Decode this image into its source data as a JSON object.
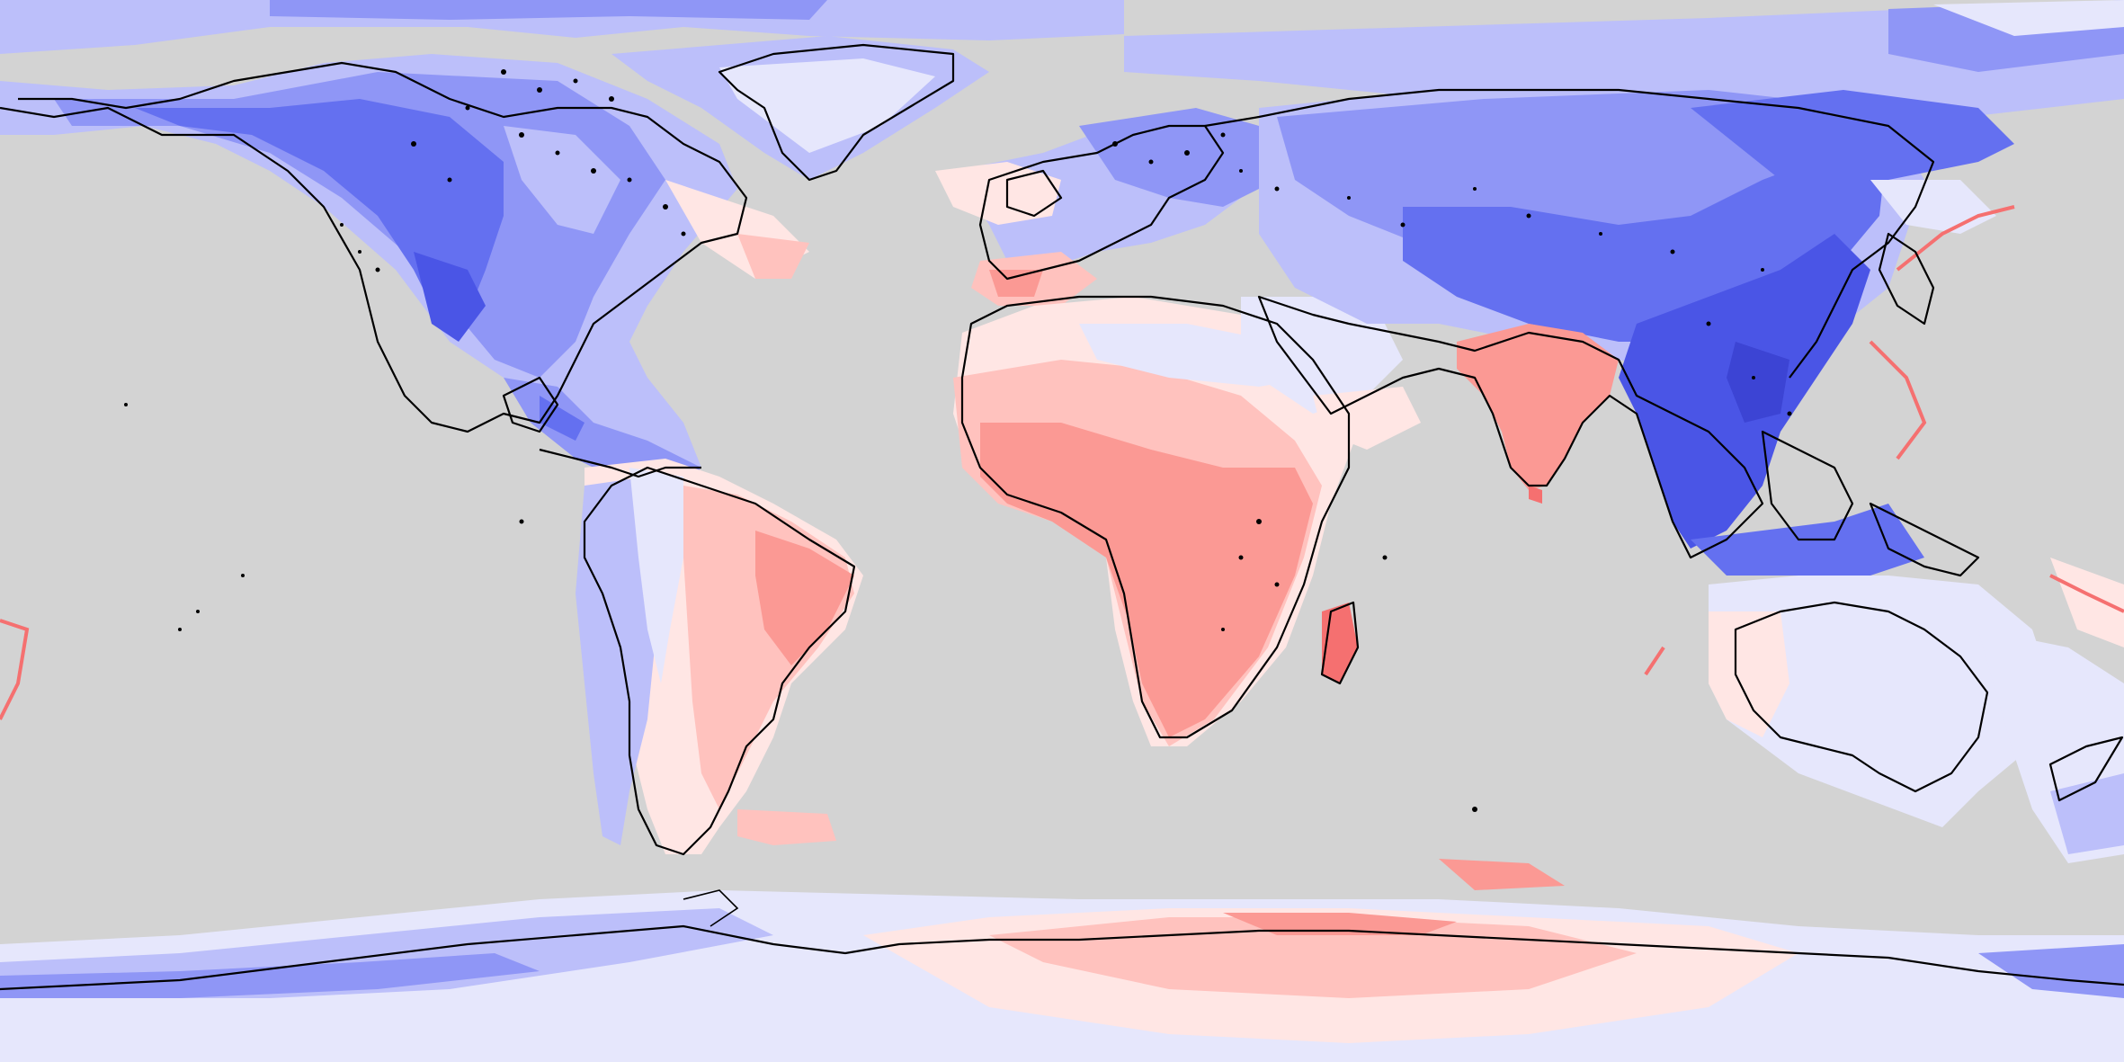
{
  "map": {
    "projection": "equirectangular",
    "ocean_color": "#d3d3d3",
    "background_fill": "#e9e9fb",
    "legend": null,
    "title": "",
    "palette": {
      "blue_5": "#4a55e6",
      "blue_4": "#6470f0",
      "blue_3": "#8f96f6",
      "blue_2": "#bcbffa",
      "blue_1": "#e6e7fc",
      "red_1": "#ffe6e4",
      "red_2": "#ffc2be",
      "red_3": "#fb9994",
      "red_4": "#f57070",
      "coastline": "#000000"
    },
    "regions": [
      {
        "name": "north-america",
        "level": "blue-high"
      },
      {
        "name": "greenland",
        "level": "blue-low"
      },
      {
        "name": "south-america",
        "level": "red-mid"
      },
      {
        "name": "europe",
        "level": "blue-mid"
      },
      {
        "name": "africa",
        "level": "red-high"
      },
      {
        "name": "middle-east",
        "level": "blue-low"
      },
      {
        "name": "india",
        "level": "red-high"
      },
      {
        "name": "asia",
        "level": "blue-high"
      },
      {
        "name": "southeast-asia",
        "level": "blue-max"
      },
      {
        "name": "australia",
        "level": "blue-low"
      },
      {
        "name": "antarctica",
        "level": "blue-mixed-red"
      }
    ]
  }
}
